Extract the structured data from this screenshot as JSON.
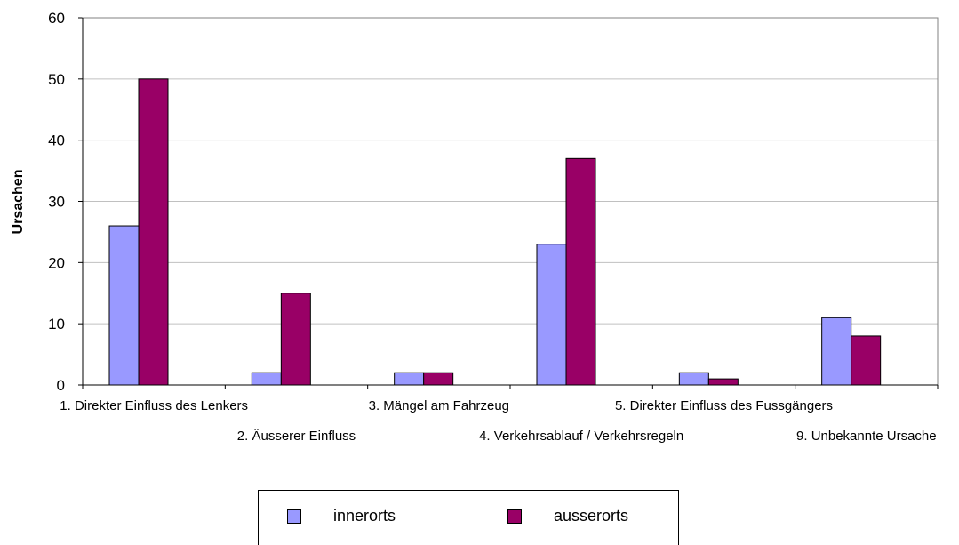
{
  "chart_data": {
    "type": "bar",
    "title": "",
    "xlabel": "",
    "ylabel": "Ursachen",
    "ylim": [
      0,
      60
    ],
    "yticks": [
      0,
      10,
      20,
      30,
      40,
      50,
      60
    ],
    "grid": true,
    "legend_position": "bottom",
    "categories": [
      "1. Direkter Einfluss des Lenkers",
      "2. Äusserer Einfluss",
      "3. Mängel am Fahrzeug",
      "4. Verkehrsablauf / Verkehrsregeln",
      "5. Direkter Einfluss des Fussgängers",
      "9. Unbekannte Ursache"
    ],
    "series": [
      {
        "name": "innerorts",
        "color": "#9999ff",
        "values": [
          26,
          2,
          2,
          23,
          2,
          11
        ]
      },
      {
        "name": "ausserorts",
        "color": "#990066",
        "values": [
          50,
          15,
          2,
          37,
          1,
          8
        ]
      }
    ]
  }
}
